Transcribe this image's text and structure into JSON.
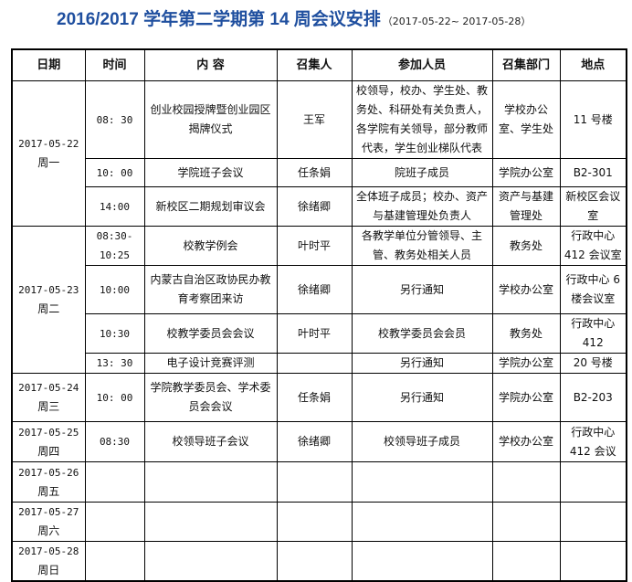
{
  "title": {
    "main": "2016/2017 学年第二学期第 14 周会议安排",
    "range": "（2017-05-22~ 2017-05-28）"
  },
  "headers": [
    "日期",
    "时间",
    "内 容",
    "召集人",
    "参加人员",
    "召集部门",
    "地点"
  ],
  "days": [
    {
      "date": "2017-05-22",
      "weekday": "周一",
      "meetings": [
        {
          "time": "08: 30",
          "content": "创业校园授牌暨创业园区揭牌仪式",
          "convener": "王军",
          "attendees": "校领导，校办、学生处、教务处、科研处有关负责人，各学院有关领导，部分教师代表，学生创业梯队代表",
          "dept": "学校办公室、学生处",
          "place": "11 号楼"
        },
        {
          "time": "10: 00",
          "content": "学院班子会议",
          "convener": "任条娟",
          "attendees": "院班子成员",
          "dept": "学院办公室",
          "place": "B2-301"
        },
        {
          "time": "14:00",
          "content": "新校区二期规划审议会",
          "convener": "徐绪卿",
          "attendees": "全体班子成员；校办、资产与基建管理处负责人",
          "dept": "资产与基建管理处",
          "place": "新校区会议室"
        }
      ]
    },
    {
      "date": "2017-05-23",
      "weekday": "周二",
      "meetings": [
        {
          "time": "08:30-10:25",
          "content": "校教学例会",
          "convener": "叶时平",
          "attendees": "各教学单位分管领导、主管、教务处相关人员",
          "dept": "教务处",
          "place": "行政中心412 会议室"
        },
        {
          "time": "10:00",
          "content": "内蒙古自治区政协民办教育考察团来访",
          "convener": "徐绪卿",
          "attendees": "另行通知",
          "dept": "学校办公室",
          "place": "行政中心 6 楼会议室"
        },
        {
          "time": "10:30",
          "content": "校教学委员会会议",
          "convener": "叶时平",
          "attendees": "校教学委员会会员",
          "dept": "教务处",
          "place": "行政中心412"
        },
        {
          "time": "13: 30",
          "content": "电子设计竞赛评测",
          "convener": "",
          "attendees": "另行通知",
          "dept": "学院办公室",
          "place": "20 号楼"
        }
      ]
    },
    {
      "date": "2017-05-24",
      "weekday": "周三",
      "meetings": [
        {
          "time": "10: 00",
          "content": "学院教学委员会、学术委员会会议",
          "convener": "任条娟",
          "attendees": "另行通知",
          "dept": "学院办公室",
          "place": "B2-203"
        }
      ]
    },
    {
      "date": "2017-05-25",
      "weekday": "周四",
      "meetings": [
        {
          "time": "08:30",
          "content": "校领导班子会议",
          "convener": "徐绪卿",
          "attendees": "校领导班子成员",
          "dept": "学校办公室",
          "place": "行政中心412 会议"
        }
      ]
    },
    {
      "date": "2017-05-26",
      "weekday": "周五",
      "meetings": [
        {
          "time": "",
          "content": "",
          "convener": "",
          "attendees": "",
          "dept": "",
          "place": ""
        }
      ]
    },
    {
      "date": "2017-05-27",
      "weekday": "周六",
      "meetings": [
        {
          "time": "",
          "content": "",
          "convener": "",
          "attendees": "",
          "dept": "",
          "place": ""
        }
      ]
    },
    {
      "date": "2017-05-28",
      "weekday": "周日",
      "meetings": [
        {
          "time": "",
          "content": "",
          "convener": "",
          "attendees": "",
          "dept": "",
          "place": ""
        }
      ]
    }
  ]
}
